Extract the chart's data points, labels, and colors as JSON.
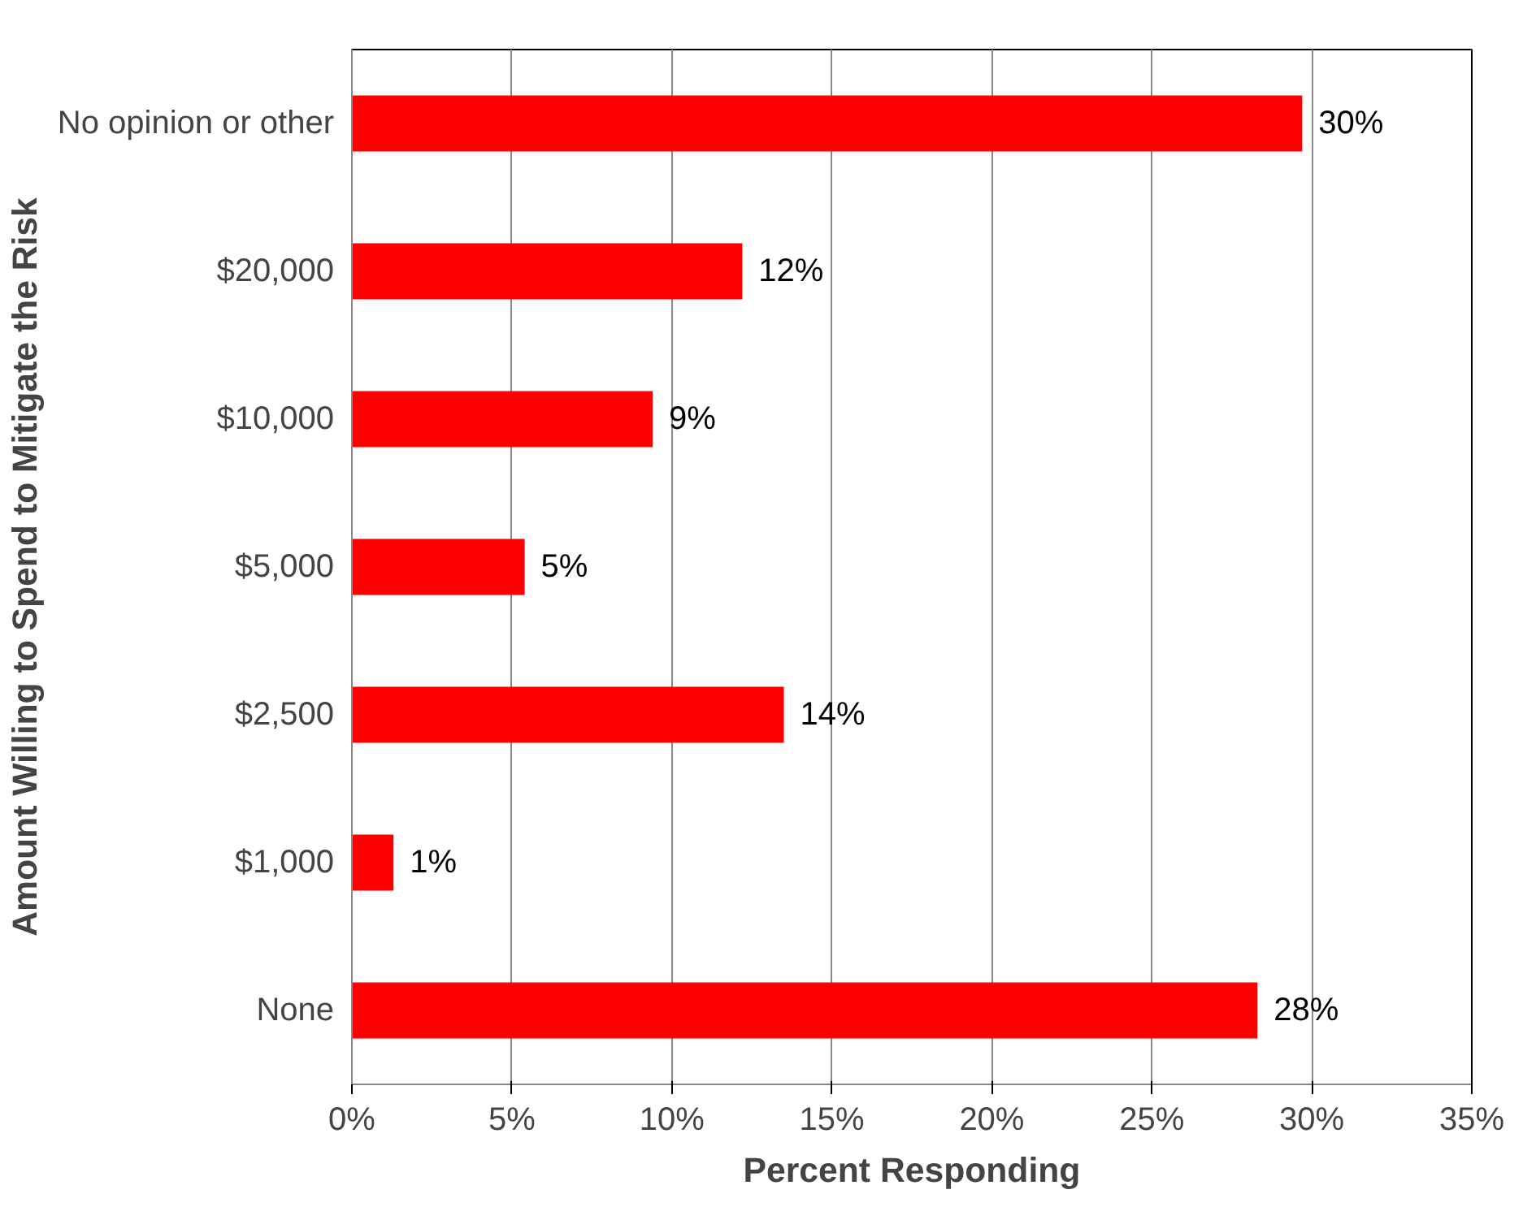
{
  "chart_data": {
    "type": "bar",
    "orientation": "horizontal",
    "xlabel": "Percent Responding",
    "ylabel": "Amount Willing to Spend to Mitigate the Risk",
    "categories": [
      "No opinion or other",
      "$20,000",
      "$10,000",
      "$5,000",
      "$2,500",
      "$1,000",
      "None"
    ],
    "values": [
      29.7,
      12.2,
      9.4,
      5.4,
      13.5,
      1.3,
      28.3
    ],
    "value_labels": [
      "30%",
      "12%",
      "9%",
      "5%",
      "14%",
      "1%",
      "28%"
    ],
    "color": "#ff0000",
    "xlim": [
      0,
      35
    ],
    "xticks": [
      {
        "value": 0,
        "label": "0%"
      },
      {
        "value": 5,
        "label": "5%"
      },
      {
        "value": 10,
        "label": "10%"
      },
      {
        "value": 15,
        "label": "15%"
      },
      {
        "value": 20,
        "label": "20%"
      },
      {
        "value": 25,
        "label": "25%"
      },
      {
        "value": 30,
        "label": "30%"
      },
      {
        "value": 35,
        "label": "35%"
      }
    ],
    "grid": "x"
  }
}
